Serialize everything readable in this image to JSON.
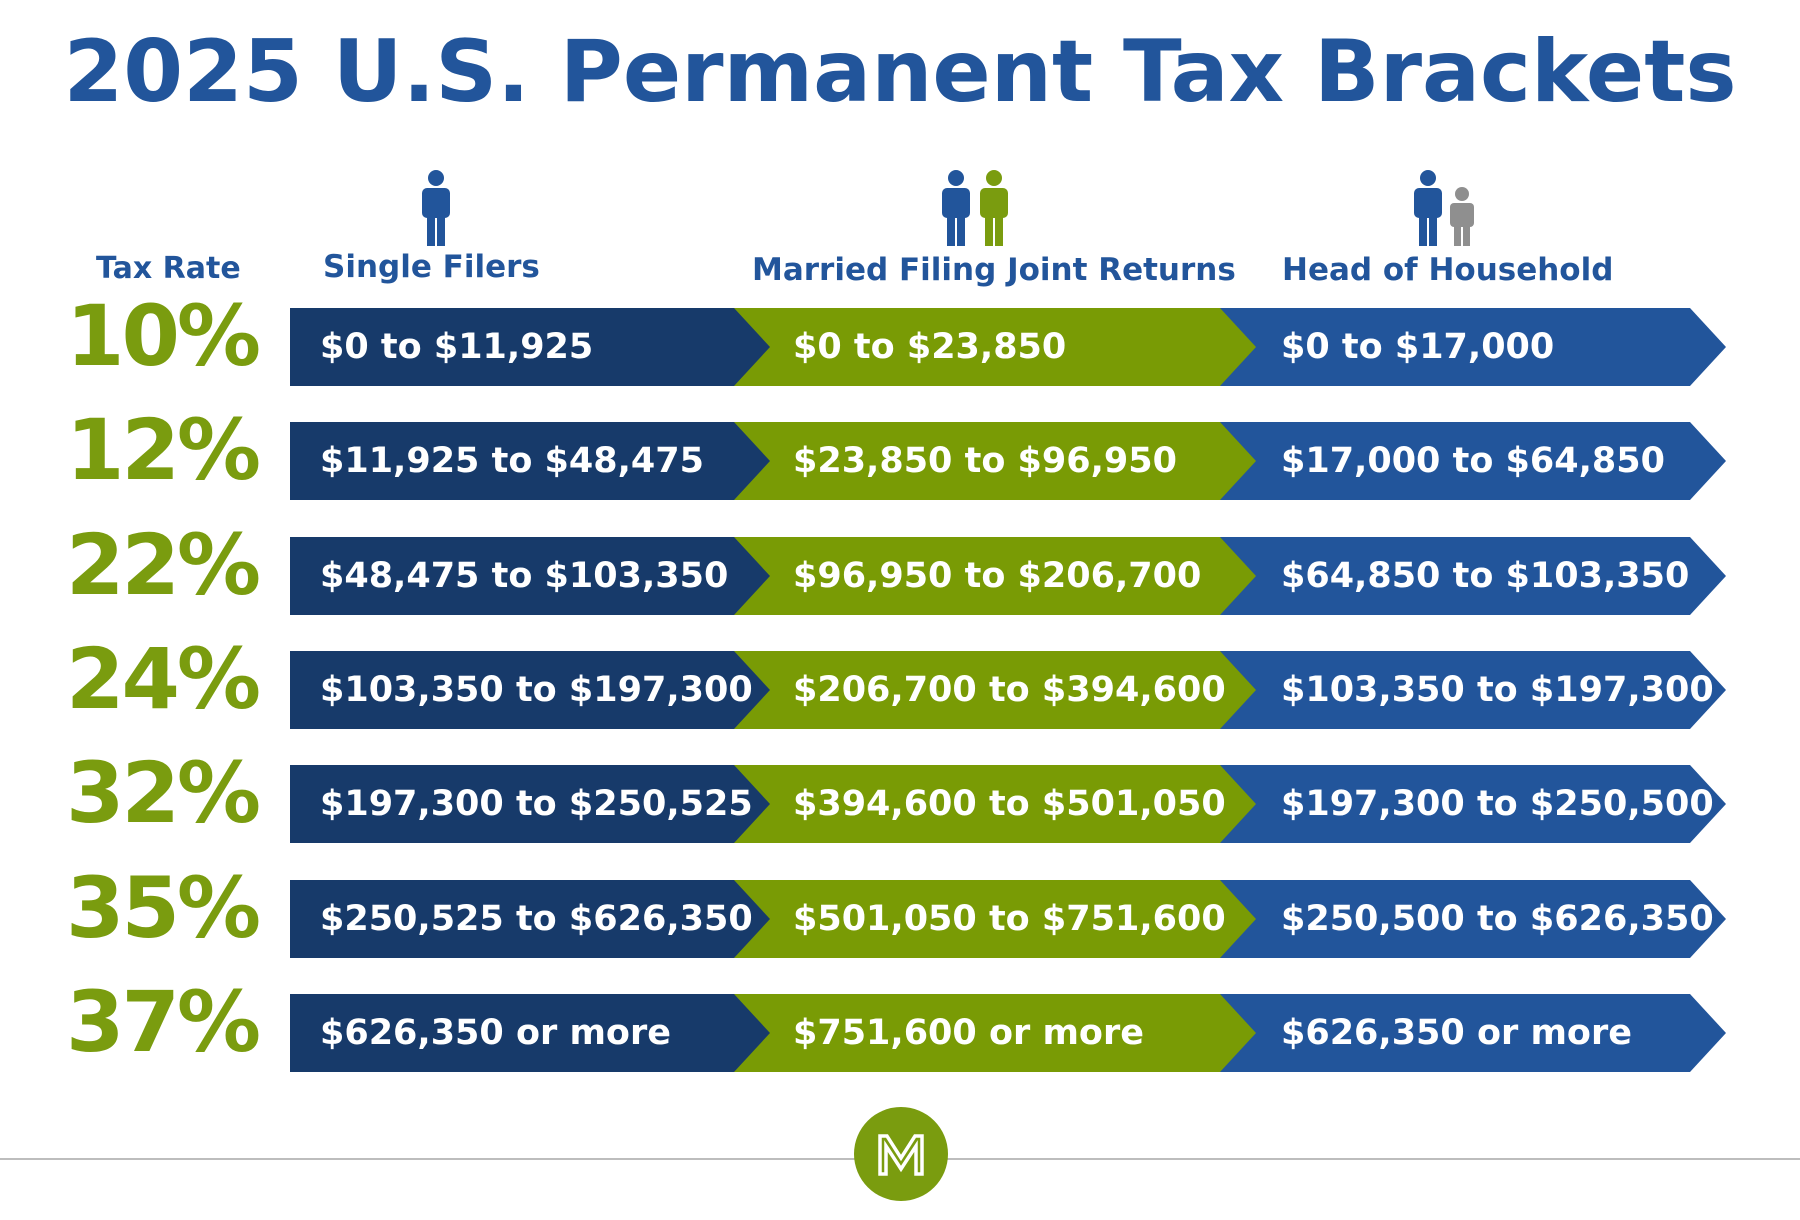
{
  "title": "2025 U.S. Permanent Tax Brackets",
  "headers": {
    "rate": "Tax Rate",
    "single": "Single Filers",
    "married": "Married Filing Joint Returns",
    "head": "Head of Household"
  },
  "colors": {
    "title": "#22559b",
    "rate_green": "#7a9c0f",
    "single_bar": "#173a6a",
    "married_bar": "#799b05",
    "head_bar": "#22559b",
    "icon_gray": "#8f8f8f"
  },
  "icons": {
    "single": "person-icon",
    "married": "couple-icon",
    "head": "parent-child-icon",
    "logo": "m-logo"
  },
  "rows": [
    {
      "rate": "10%",
      "single": "$0 to $11,925",
      "married": "$0 to $23,850",
      "head": "$0 to $17,000"
    },
    {
      "rate": "12%",
      "single": "$11,925 to $48,475",
      "married": "$23,850 to $96,950",
      "head": "$17,000 to $64,850"
    },
    {
      "rate": "22%",
      "single": "$48,475 to $103,350",
      "married": "$96,950 to $206,700",
      "head": "$64,850 to $103,350"
    },
    {
      "rate": "24%",
      "single": "$103,350 to $197,300",
      "married": "$206,700 to $394,600",
      "head": "$103,350 to $197,300"
    },
    {
      "rate": "32%",
      "single": "$197,300 to $250,525",
      "married": "$394,600 to $501,050",
      "head": "$197,300 to $250,500"
    },
    {
      "rate": "35%",
      "single": "$250,525 to $626,350",
      "married": "$501,050 to $751,600",
      "head": "$250,500 to $626,350"
    },
    {
      "rate": "37%",
      "single": "$626,350 or more",
      "married": "$751,600 or more",
      "head": "$626,350 or more"
    }
  ]
}
